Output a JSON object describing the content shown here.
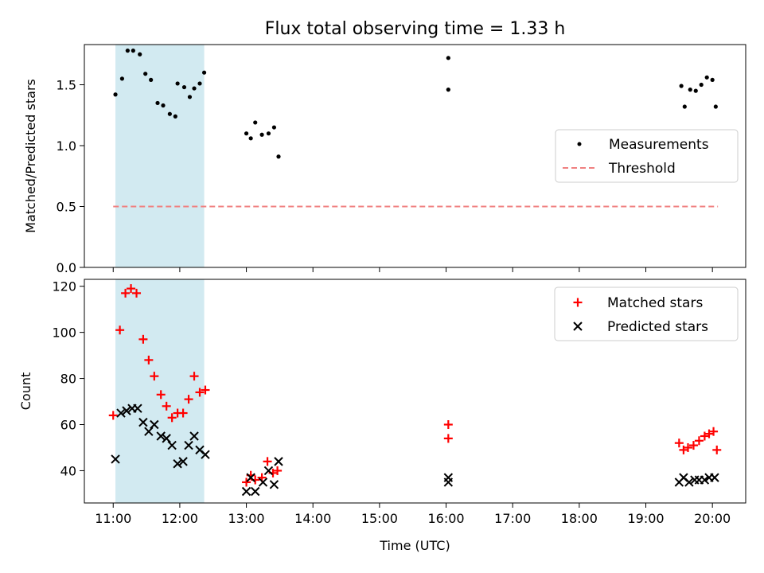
{
  "chart_data": [
    {
      "type": "scatter",
      "title": "Flux total observing time = 1.33 h",
      "ylabel": "Matched/Predicted stars",
      "xlabel": "",
      "ylim": [
        0,
        1.83
      ],
      "yticks": [
        "0.0",
        "0.5",
        "1.0",
        "1.5"
      ],
      "legend_position": "center-right",
      "highlight_span": {
        "x": [
          "11:02",
          "12:22"
        ],
        "color": "#add8e6"
      },
      "series": [
        {
          "name": "Measurements",
          "marker": "dot",
          "color": "#000000",
          "points": [
            [
              "11:02",
              1.42
            ],
            [
              "11:08",
              1.55
            ],
            [
              "11:13",
              1.78
            ],
            [
              "11:18",
              1.78
            ],
            [
              "11:24",
              1.75
            ],
            [
              "11:29",
              1.59
            ],
            [
              "11:34",
              1.54
            ],
            [
              "11:40",
              1.35
            ],
            [
              "11:45",
              1.33
            ],
            [
              "11:51",
              1.26
            ],
            [
              "11:56",
              1.24
            ],
            [
              "11:58",
              1.51
            ],
            [
              "12:04",
              1.48
            ],
            [
              "12:09",
              1.4
            ],
            [
              "12:13",
              1.47
            ],
            [
              "12:18",
              1.51
            ],
            [
              "12:22",
              1.6
            ],
            [
              "13:00",
              1.1
            ],
            [
              "13:04",
              1.06
            ],
            [
              "13:08",
              1.19
            ],
            [
              "13:14",
              1.09
            ],
            [
              "13:20",
              1.1
            ],
            [
              "13:25",
              1.15
            ],
            [
              "13:29",
              0.91
            ],
            [
              "16:02",
              1.72
            ],
            [
              "16:02",
              1.46
            ],
            [
              "19:32",
              1.49
            ],
            [
              "19:35",
              1.32
            ],
            [
              "19:40",
              1.46
            ],
            [
              "19:45",
              1.45
            ],
            [
              "19:50",
              1.5
            ],
            [
              "19:55",
              1.56
            ],
            [
              "20:00",
              1.54
            ],
            [
              "20:03",
              1.32
            ]
          ]
        },
        {
          "name": "Threshold",
          "marker": "dashed-line",
          "color": "#f08080",
          "points": [
            [
              "11:00",
              0.5
            ],
            [
              "20:05",
              0.5
            ]
          ]
        }
      ]
    },
    {
      "type": "scatter",
      "title": "",
      "ylabel": "Count",
      "xlabel": "Time (UTC)",
      "ylim": [
        26,
        123
      ],
      "yticks": [
        "40",
        "60",
        "80",
        "100",
        "120"
      ],
      "xticks": [
        "11:00",
        "12:00",
        "13:00",
        "14:00",
        "15:00",
        "16:00",
        "17:00",
        "18:00",
        "19:00",
        "20:00"
      ],
      "legend_position": "top-right",
      "highlight_span": {
        "x": [
          "11:02",
          "12:22"
        ],
        "color": "#add8e6"
      },
      "series": [
        {
          "name": "Matched stars",
          "marker": "plus",
          "color": "#ff0000",
          "points": [
            [
              "11:00",
              64
            ],
            [
              "11:06",
              101
            ],
            [
              "11:11",
              117
            ],
            [
              "11:16",
              119
            ],
            [
              "11:21",
              117
            ],
            [
              "11:27",
              97
            ],
            [
              "11:32",
              88
            ],
            [
              "11:37",
              81
            ],
            [
              "11:43",
              73
            ],
            [
              "11:48",
              68
            ],
            [
              "11:53",
              63
            ],
            [
              "11:58",
              65
            ],
            [
              "12:03",
              65
            ],
            [
              "12:08",
              71
            ],
            [
              "12:13",
              81
            ],
            [
              "12:18",
              74
            ],
            [
              "12:23",
              75
            ],
            [
              "13:00",
              35
            ],
            [
              "13:04",
              38
            ],
            [
              "13:08",
              36
            ],
            [
              "13:14",
              37
            ],
            [
              "13:19",
              44
            ],
            [
              "13:24",
              39
            ],
            [
              "13:28",
              40
            ],
            [
              "16:02",
              60
            ],
            [
              "16:02",
              54
            ],
            [
              "19:30",
              52
            ],
            [
              "19:34",
              49
            ],
            [
              "19:38",
              50
            ],
            [
              "19:43",
              51
            ],
            [
              "19:48",
              53
            ],
            [
              "19:53",
              55
            ],
            [
              "19:57",
              56
            ],
            [
              "20:01",
              57
            ],
            [
              "20:04",
              49
            ]
          ]
        },
        {
          "name": "Predicted stars",
          "marker": "x",
          "color": "#000000",
          "points": [
            [
              "11:02",
              45
            ],
            [
              "11:07",
              65
            ],
            [
              "11:12",
              66
            ],
            [
              "11:17",
              67
            ],
            [
              "11:22",
              67
            ],
            [
              "11:27",
              61
            ],
            [
              "11:32",
              57
            ],
            [
              "11:37",
              60
            ],
            [
              "11:43",
              55
            ],
            [
              "11:48",
              54
            ],
            [
              "11:53",
              51
            ],
            [
              "11:58",
              43
            ],
            [
              "12:03",
              44
            ],
            [
              "12:08",
              51
            ],
            [
              "12:13",
              55
            ],
            [
              "12:18",
              49
            ],
            [
              "12:23",
              47
            ],
            [
              "13:00",
              31
            ],
            [
              "13:04",
              37
            ],
            [
              "13:08",
              31
            ],
            [
              "13:15",
              35
            ],
            [
              "13:20",
              40
            ],
            [
              "13:25",
              34
            ],
            [
              "13:29",
              44
            ],
            [
              "16:02",
              37
            ],
            [
              "16:02",
              35
            ],
            [
              "19:30",
              35
            ],
            [
              "19:34",
              37
            ],
            [
              "19:39",
              35
            ],
            [
              "19:44",
              36
            ],
            [
              "19:48",
              36
            ],
            [
              "19:53",
              36
            ],
            [
              "19:57",
              37
            ],
            [
              "20:02",
              37
            ]
          ]
        }
      ]
    }
  ]
}
